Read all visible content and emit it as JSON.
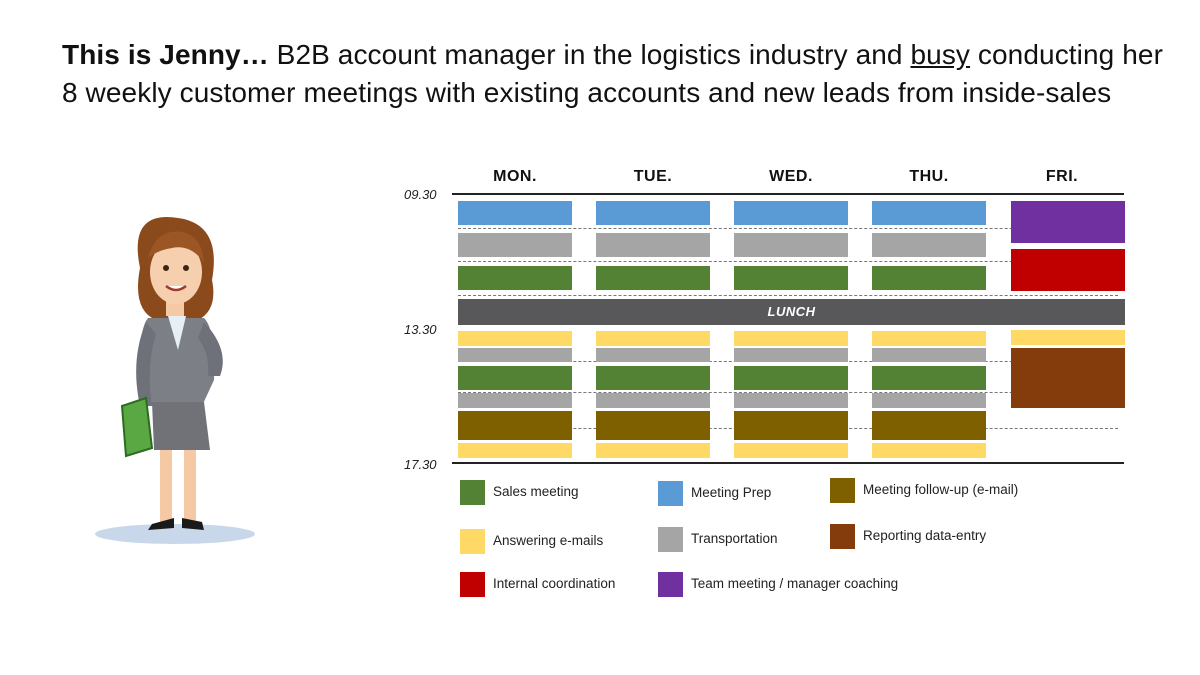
{
  "headline": {
    "bold": "This is Jenny…",
    "part1": " B2B account manager in the logistics industry and ",
    "underlined": "busy",
    "part2": " conducting her 8 weekly customer meetings with existing accounts and new leads from inside-sales"
  },
  "schedule": {
    "days": [
      "MON.",
      "TUE.",
      "WED.",
      "THU.",
      "FRI."
    ],
    "time_start": "09.30",
    "time_mid": "13.30",
    "time_end": "17.30",
    "lunch_label": "LUNCH",
    "weekday_blocks": [
      "meeting-prep",
      "transportation",
      "sales-meeting",
      "lunch",
      "answering-emails",
      "transportation",
      "sales-meeting",
      "transportation",
      "meeting-follow-up",
      "answering-emails"
    ],
    "friday_blocks": [
      "team-meeting",
      "internal-coordination",
      "lunch",
      "answering-emails",
      "reporting-data-entry"
    ]
  },
  "categories": {
    "sales-meeting": {
      "label": "Sales meeting",
      "color": "#548235"
    },
    "meeting-prep": {
      "label": "Meeting Prep",
      "color": "#5b9bd5"
    },
    "meeting-follow-up": {
      "label": "Meeting follow-up (e-mail)",
      "color": "#7f6000"
    },
    "answering-emails": {
      "label": "Answering e-mails",
      "color": "#ffd966"
    },
    "transportation": {
      "label": "Transportation",
      "color": "#a5a5a5"
    },
    "reporting-data-entry": {
      "label": "Reporting data-entry",
      "color": "#843c0c"
    },
    "internal-coordination": {
      "label": "Internal coordination",
      "color": "#c00000"
    },
    "team-meeting": {
      "label": "Team meeting / manager coaching",
      "color": "#7030a0"
    },
    "lunch": {
      "color": "#58585a"
    }
  },
  "legend_order": [
    "sales-meeting",
    "meeting-prep",
    "meeting-follow-up",
    "answering-emails",
    "transportation",
    "reporting-data-entry",
    "internal-coordination",
    "team-meeting"
  ]
}
